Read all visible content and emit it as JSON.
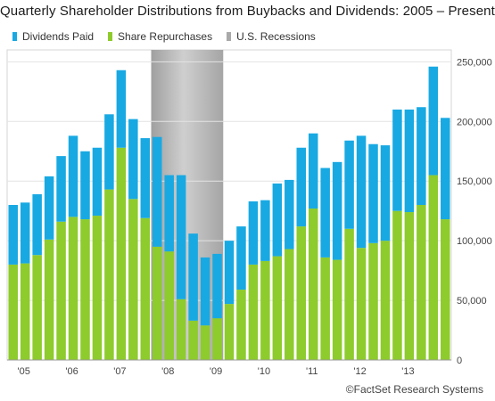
{
  "chart_data": {
    "type": "bar",
    "stacked": true,
    "title": "Quarterly Shareholder Distributions from Buybacks and Dividends: 2005 – Present",
    "source_label": "©FactSet Research Systems",
    "legend": [
      {
        "name": "Dividends Paid",
        "color": "#18a9e3"
      },
      {
        "name": "Share Repurchases",
        "color": "#8ecb2c"
      },
      {
        "name": "U.S. Recessions",
        "color": "#a9a9a9"
      }
    ],
    "x_tick_labels": [
      "'05",
      "'06",
      "'07",
      "'08",
      "'09",
      "'10",
      "'11",
      "'12",
      "'13"
    ],
    "y_ticks": [
      0,
      50000,
      100000,
      150000,
      200000,
      250000
    ],
    "y_tick_labels": [
      "0",
      "50,000",
      "100,000",
      "150,000",
      "200,000",
      "250,000"
    ],
    "ylim": [
      0,
      260000
    ],
    "grid": true,
    "recession": {
      "start_index": 12,
      "end_index": 18
    },
    "categories": [
      "2005 Q1",
      "2005 Q2",
      "2005 Q3",
      "2005 Q4",
      "2006 Q1",
      "2006 Q2",
      "2006 Q3",
      "2006 Q4",
      "2007 Q1",
      "2007 Q2",
      "2007 Q3",
      "2007 Q4",
      "2008 Q1",
      "2008 Q2",
      "2008 Q3",
      "2008 Q4",
      "2009 Q1",
      "2009 Q2",
      "2009 Q3",
      "2009 Q4",
      "2010 Q1",
      "2010 Q2",
      "2010 Q3",
      "2010 Q4",
      "2011 Q1",
      "2011 Q2",
      "2011 Q3",
      "2011 Q4",
      "2012 Q1",
      "2012 Q2",
      "2012 Q3",
      "2012 Q4",
      "2013 Q1",
      "2013 Q2",
      "2013 Q3",
      "2013 Q4",
      "2014 Q1"
    ],
    "series": [
      {
        "name": "Share Repurchases",
        "color": "#8ecb2c",
        "values": [
          80000,
          81000,
          88000,
          101000,
          116000,
          120000,
          118000,
          121000,
          143000,
          178000,
          135000,
          119000,
          95000,
          91000,
          51000,
          33000,
          29000,
          35000,
          47000,
          59000,
          80000,
          83000,
          87000,
          93000,
          112000,
          127000,
          86000,
          84000,
          110000,
          94000,
          98000,
          100000,
          125000,
          124000,
          130000,
          155000,
          118000
        ]
      },
      {
        "name": "Dividends Paid",
        "color": "#18a9e3",
        "values": [
          50000,
          51000,
          51000,
          53000,
          55000,
          68000,
          57000,
          57000,
          63000,
          65000,
          67000,
          67000,
          92000,
          64000,
          104000,
          73000,
          57000,
          54000,
          53000,
          53000,
          53000,
          51000,
          61000,
          58000,
          66000,
          63000,
          75000,
          82000,
          74000,
          94000,
          83000,
          80000,
          85000,
          86000,
          82000,
          91000,
          85000
        ]
      }
    ]
  }
}
